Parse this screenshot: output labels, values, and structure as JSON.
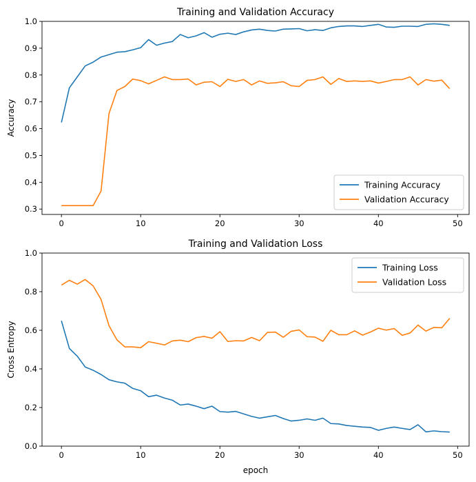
{
  "chart_data": [
    {
      "type": "line",
      "title": "Training and Validation Accuracy",
      "xlabel": "",
      "ylabel": "Accuracy",
      "xlim": [
        -2.45,
        51.45
      ],
      "ylim": [
        0.28,
        1.0
      ],
      "xticks": [
        0,
        10,
        20,
        30,
        40,
        50
      ],
      "xtick_labels": [
        "0",
        "10",
        "20",
        "30",
        "40",
        "50"
      ],
      "yticks": [
        0.3,
        0.4,
        0.5,
        0.6,
        0.7,
        0.8,
        0.9,
        1.0
      ],
      "ytick_labels": [
        "0.3",
        "0.4",
        "0.5",
        "0.6",
        "0.7",
        "0.8",
        "0.9",
        "1.0"
      ],
      "grid": false,
      "legend_position": "bottom-right",
      "series": [
        {
          "name": "Training Accuracy",
          "color": "#1f77b4",
          "values": [
            0.623,
            0.752,
            0.793,
            0.834,
            0.848,
            0.867,
            0.876,
            0.885,
            0.887,
            0.894,
            0.902,
            0.932,
            0.911,
            0.919,
            0.925,
            0.951,
            0.939,
            0.946,
            0.958,
            0.941,
            0.952,
            0.956,
            0.951,
            0.961,
            0.968,
            0.971,
            0.966,
            0.964,
            0.971,
            0.972,
            0.973,
            0.965,
            0.969,
            0.966,
            0.976,
            0.981,
            0.983,
            0.983,
            0.981,
            0.985,
            0.989,
            0.979,
            0.978,
            0.982,
            0.982,
            0.981,
            0.989,
            0.991,
            0.989,
            0.985
          ]
        },
        {
          "name": "Validation Accuracy",
          "color": "#ff7f0e",
          "values": [
            0.313,
            0.313,
            0.313,
            0.313,
            0.313,
            0.367,
            0.656,
            0.742,
            0.757,
            0.785,
            0.779,
            0.767,
            0.78,
            0.793,
            0.783,
            0.783,
            0.785,
            0.763,
            0.773,
            0.775,
            0.757,
            0.784,
            0.776,
            0.783,
            0.763,
            0.778,
            0.769,
            0.771,
            0.775,
            0.76,
            0.757,
            0.78,
            0.783,
            0.793,
            0.765,
            0.787,
            0.776,
            0.778,
            0.776,
            0.778,
            0.77,
            0.776,
            0.783,
            0.783,
            0.793,
            0.763,
            0.783,
            0.777,
            0.781,
            0.749
          ]
        }
      ]
    },
    {
      "type": "line",
      "title": "Training and Validation Loss",
      "xlabel": "epoch",
      "ylabel": "Cross Entropy",
      "xlim": [
        -2.45,
        51.45
      ],
      "ylim": [
        0.0,
        1.0
      ],
      "xticks": [
        0,
        10,
        20,
        30,
        40,
        50
      ],
      "xtick_labels": [
        "0",
        "10",
        "20",
        "30",
        "40",
        "50"
      ],
      "yticks": [
        0.0,
        0.2,
        0.4,
        0.6,
        0.8,
        1.0
      ],
      "ytick_labels": [
        "0.0",
        "0.2",
        "0.4",
        "0.6",
        "0.8",
        "1.0"
      ],
      "grid": false,
      "legend_position": "top-right",
      "series": [
        {
          "name": "Training Loss",
          "color": "#1f77b4",
          "values": [
            0.649,
            0.506,
            0.466,
            0.41,
            0.393,
            0.371,
            0.344,
            0.333,
            0.326,
            0.299,
            0.287,
            0.256,
            0.264,
            0.249,
            0.238,
            0.213,
            0.218,
            0.207,
            0.194,
            0.207,
            0.179,
            0.176,
            0.18,
            0.167,
            0.154,
            0.145,
            0.152,
            0.159,
            0.143,
            0.13,
            0.134,
            0.141,
            0.134,
            0.145,
            0.117,
            0.115,
            0.107,
            0.103,
            0.099,
            0.097,
            0.082,
            0.092,
            0.099,
            0.092,
            0.086,
            0.111,
            0.074,
            0.079,
            0.075,
            0.073
          ]
        },
        {
          "name": "Validation Loss",
          "color": "#ff7f0e",
          "values": [
            0.834,
            0.859,
            0.839,
            0.863,
            0.83,
            0.76,
            0.624,
            0.551,
            0.514,
            0.514,
            0.51,
            0.541,
            0.533,
            0.524,
            0.545,
            0.549,
            0.541,
            0.562,
            0.568,
            0.559,
            0.593,
            0.542,
            0.546,
            0.545,
            0.563,
            0.546,
            0.589,
            0.591,
            0.564,
            0.595,
            0.602,
            0.567,
            0.565,
            0.543,
            0.6,
            0.577,
            0.577,
            0.597,
            0.575,
            0.591,
            0.611,
            0.601,
            0.609,
            0.574,
            0.586,
            0.627,
            0.596,
            0.615,
            0.613,
            0.662
          ]
        }
      ]
    }
  ]
}
